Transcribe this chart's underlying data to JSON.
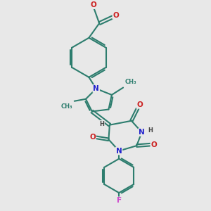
{
  "background_color": "#e8e8e8",
  "bond_color": "#2d7d6e",
  "bond_width": 1.5,
  "atom_colors": {
    "N": "#2222cc",
    "O": "#cc2222",
    "F": "#cc44cc",
    "H": "#444444",
    "C": "#2d7d6e"
  },
  "font_size_atom": 7.5,
  "font_size_small": 6.0
}
